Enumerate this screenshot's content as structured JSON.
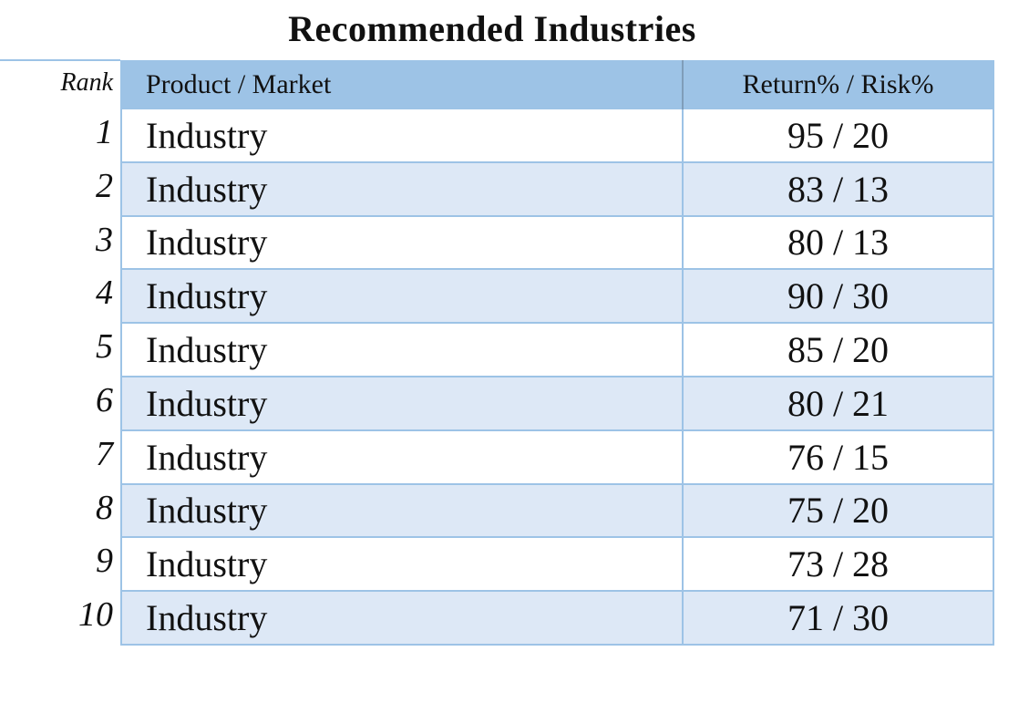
{
  "title": "Recommended Industries",
  "table": {
    "rank_header": "Rank",
    "col_product_header": "Product / Market",
    "col_return_header": "Return% / Risk%",
    "rows": [
      {
        "rank": "1",
        "product": "Industry",
        "return_risk": "95 / 20"
      },
      {
        "rank": "2",
        "product": "Industry",
        "return_risk": "83 / 13"
      },
      {
        "rank": "3",
        "product": "Industry",
        "return_risk": "80 / 13"
      },
      {
        "rank": "4",
        "product": "Industry",
        "return_risk": "90 / 30"
      },
      {
        "rank": "5",
        "product": "Industry",
        "return_risk": "85 / 20"
      },
      {
        "rank": "6",
        "product": "Industry",
        "return_risk": "80 / 21"
      },
      {
        "rank": "7",
        "product": "Industry",
        "return_risk": "76 / 15"
      },
      {
        "rank": "8",
        "product": "Industry",
        "return_risk": "75 / 20"
      },
      {
        "rank": "9",
        "product": "Industry",
        "return_risk": "73 / 28"
      },
      {
        "rank": "10",
        "product": "Industry",
        "return_risk": "71 / 30"
      }
    ]
  },
  "colors": {
    "header_fill": "#9dc3e6",
    "alt_row_fill": "#dde8f6",
    "border": "#9dc3e6"
  }
}
